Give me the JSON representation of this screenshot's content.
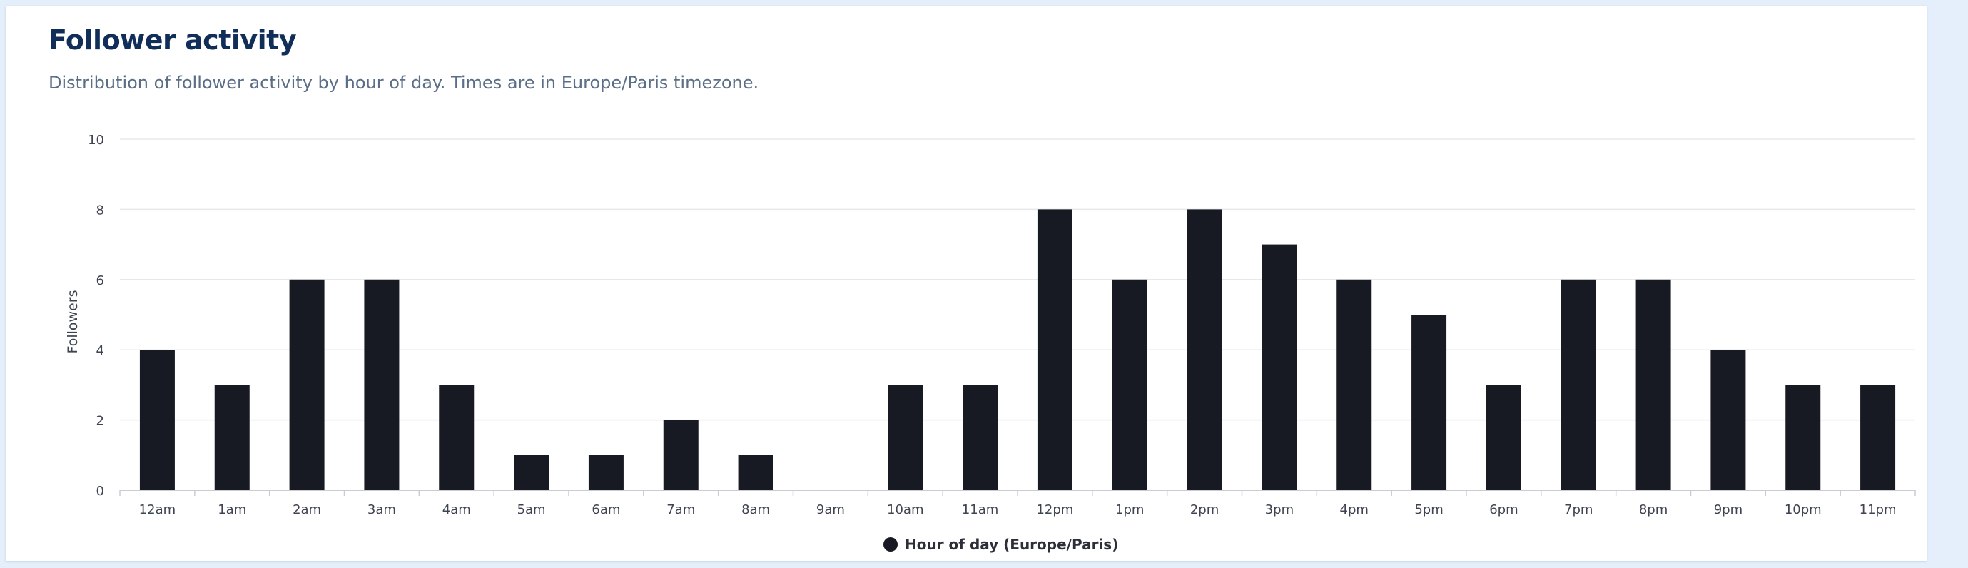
{
  "page": {
    "title": "Follower activity",
    "subtitle": "Distribution of follower activity by hour of day. Times are in Europe/Paris timezone."
  },
  "colors": {
    "bar": "#171923",
    "grid": "#e6e8ec",
    "axis": "#c9ccd3",
    "title": "#112e58"
  },
  "chart_data": {
    "type": "bar",
    "categories": [
      "12am",
      "1am",
      "2am",
      "3am",
      "4am",
      "5am",
      "6am",
      "7am",
      "8am",
      "9am",
      "10am",
      "11am",
      "12pm",
      "1pm",
      "2pm",
      "3pm",
      "4pm",
      "5pm",
      "6pm",
      "7pm",
      "8pm",
      "9pm",
      "10pm",
      "11pm"
    ],
    "series": [
      {
        "name": "Hour of day (Europe/Paris)",
        "values": [
          4,
          3,
          6,
          6,
          3,
          1,
          1,
          2,
          1,
          0,
          3,
          3,
          8,
          6,
          8,
          7,
          6,
          5,
          3,
          6,
          6,
          4,
          3,
          3
        ]
      }
    ],
    "ylabel": "Followers",
    "xlabel": "",
    "ylim": [
      0,
      10
    ],
    "yticks": [
      0,
      2,
      4,
      6,
      8,
      10
    ],
    "grid": true,
    "legend_position": "bottom-center"
  }
}
